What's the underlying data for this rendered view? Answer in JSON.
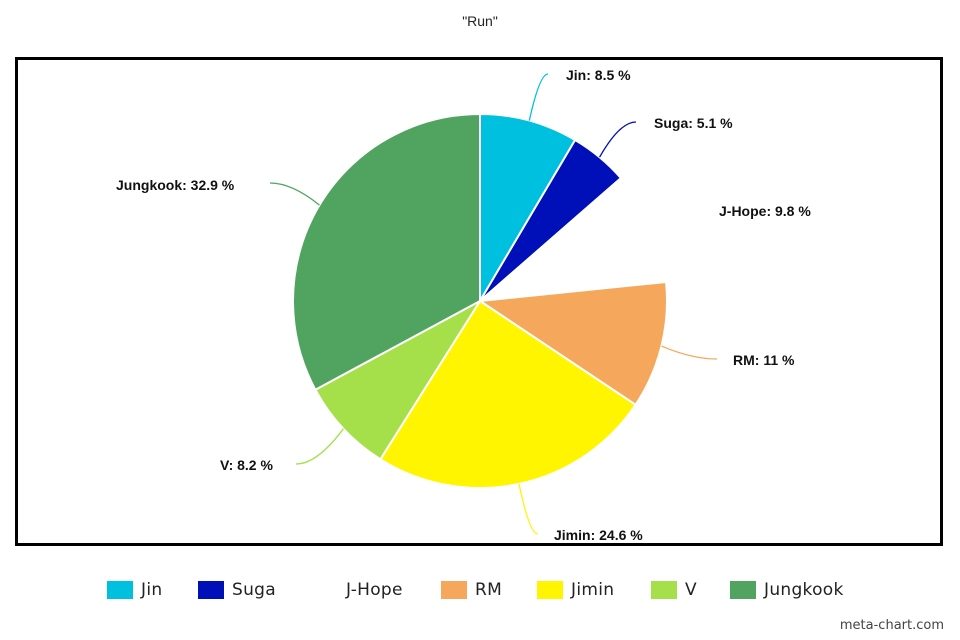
{
  "chart_data": {
    "type": "pie",
    "title": "\"Run\"",
    "slices": [
      {
        "name": "Jin",
        "value": 8.5,
        "label": "Jin: 8.5 %",
        "color": "#00c0e0"
      },
      {
        "name": "Suga",
        "value": 5.1,
        "label": "Suga: 5.1 %",
        "color": "#0010b8"
      },
      {
        "name": "J-Hope",
        "value": 9.8,
        "label": "J-Hope: 9.8 %",
        "color": "#ffffff"
      },
      {
        "name": "RM",
        "value": 11,
        "label": "RM: 11 %",
        "color": "#f5a85c"
      },
      {
        "name": "Jimin",
        "value": 24.6,
        "label": "Jimin: 24.6 %",
        "color": "#fff500"
      },
      {
        "name": "V",
        "value": 8.2,
        "label": "V: 8.2 %",
        "color": "#a5e04a"
      },
      {
        "name": "Jungkook",
        "value": 32.9,
        "label": "Jungkook: 32.9 %",
        "color": "#51a460"
      }
    ],
    "legend_position": "bottom"
  },
  "watermark": "meta-chart.com"
}
